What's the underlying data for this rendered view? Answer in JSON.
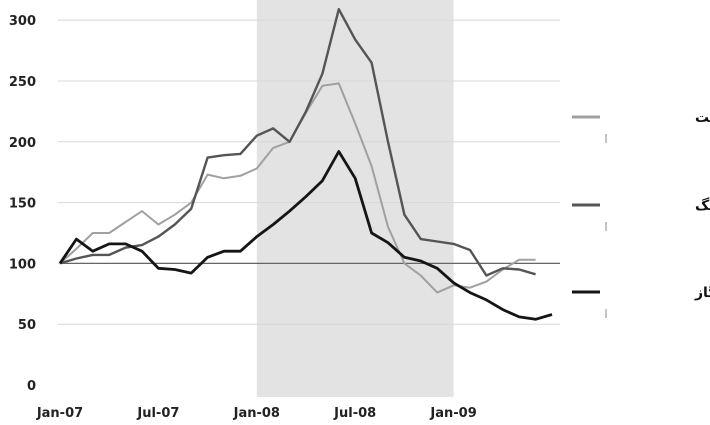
{
  "chart_data": {
    "type": "line",
    "title": "",
    "xlabel": "",
    "ylabel": "",
    "ylim": [
      0,
      310
    ],
    "xlim": [
      "2007-01",
      "2009-07"
    ],
    "yticks": [
      0,
      50,
      100,
      150,
      200,
      250,
      300
    ],
    "xticks": [
      "Jan-07",
      "Jul-07",
      "Jan-08",
      "Jul-08",
      "Jan-09"
    ],
    "grid": "horizontal",
    "reference_line": 100,
    "shaded_region": [
      "2008-01",
      "2009-01"
    ],
    "legend_position": "right",
    "x": [
      "2007-01",
      "2007-02",
      "2007-03",
      "2007-04",
      "2007-05",
      "2007-06",
      "2007-07",
      "2007-08",
      "2007-09",
      "2007-10",
      "2007-11",
      "2007-12",
      "2008-01",
      "2008-02",
      "2008-03",
      "2008-04",
      "2008-05",
      "2008-06",
      "2008-07",
      "2008-08",
      "2008-09",
      "2008-10",
      "2008-11",
      "2008-12",
      "2009-01",
      "2009-02",
      "2009-03",
      "2009-04",
      "2009-05",
      "2009-06",
      "2009-07"
    ],
    "series": [
      {
        "name": "نفت",
        "color": "#a0a0a0",
        "values": [
          100,
          112,
          125,
          125,
          134,
          143,
          132,
          140,
          150,
          173,
          170,
          172,
          178,
          195,
          200,
          224,
          246,
          248,
          215,
          180,
          130,
          100,
          90,
          76,
          82,
          80,
          85,
          95,
          103,
          103,
          null
        ]
      },
      {
        "name": "ذغال سنگ",
        "color": "#555555",
        "values": [
          100,
          104,
          107,
          107,
          113,
          115,
          122,
          132,
          145,
          187,
          189,
          190,
          205,
          211,
          200,
          225,
          256,
          309,
          284,
          265,
          200,
          140,
          120,
          118,
          116,
          111,
          90,
          96,
          95,
          91,
          null
        ]
      },
      {
        "name": "گاز",
        "color": "#151515",
        "values": [
          100,
          120,
          110,
          116,
          116,
          110,
          96,
          95,
          92,
          105,
          110,
          110,
          122,
          132,
          143,
          155,
          168,
          192,
          170,
          125,
          117,
          105,
          102,
          96,
          84,
          76,
          70,
          62,
          56,
          54,
          58
        ]
      }
    ]
  }
}
